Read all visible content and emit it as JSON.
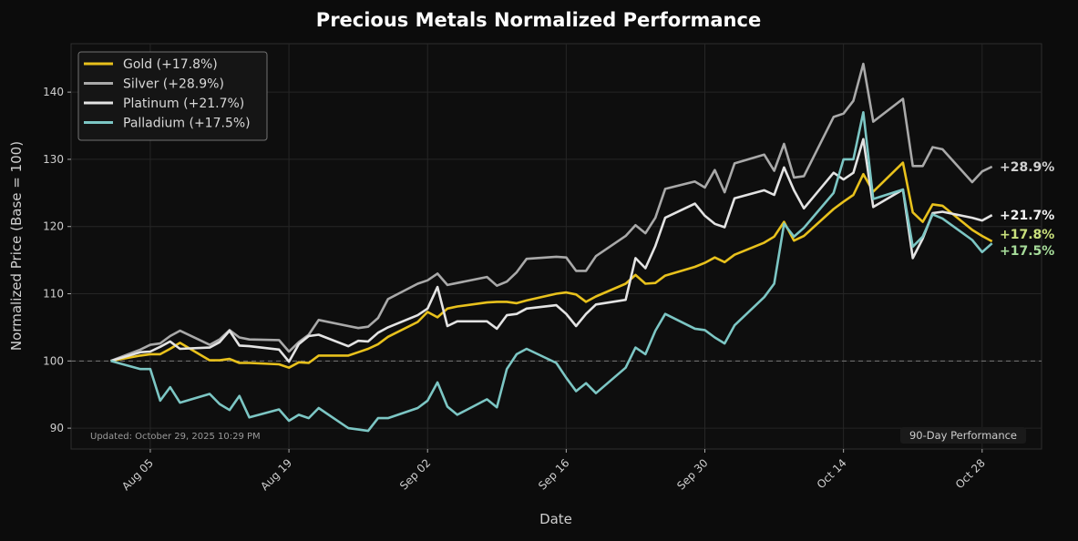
{
  "chart_data": {
    "type": "line",
    "title": "Precious Metals Normalized Performance",
    "xlabel": "Date",
    "ylabel": "Normalized Price (Base = 100)",
    "ylim": [
      86.9,
      147.2
    ],
    "xlim": [
      "2025-07-28",
      "2025-11-03"
    ],
    "yticks": [
      90,
      100,
      110,
      120,
      130,
      140
    ],
    "xticks": [
      {
        "date": "2025-08-05",
        "label": "Aug 05"
      },
      {
        "date": "2025-08-19",
        "label": "Aug 19"
      },
      {
        "date": "2025-09-02",
        "label": "Sep 02"
      },
      {
        "date": "2025-09-16",
        "label": "Sep 16"
      },
      {
        "date": "2025-09-30",
        "label": "Sep 30"
      },
      {
        "date": "2025-10-14",
        "label": "Oct 14"
      },
      {
        "date": "2025-10-28",
        "label": "Oct 28"
      }
    ],
    "grid": true,
    "baseline": 100,
    "legend_position": "top-left",
    "x": [
      "2025-08-01",
      "2025-08-04",
      "2025-08-05",
      "2025-08-06",
      "2025-08-07",
      "2025-08-08",
      "2025-08-11",
      "2025-08-12",
      "2025-08-13",
      "2025-08-14",
      "2025-08-15",
      "2025-08-18",
      "2025-08-19",
      "2025-08-20",
      "2025-08-21",
      "2025-08-22",
      "2025-08-25",
      "2025-08-26",
      "2025-08-27",
      "2025-08-28",
      "2025-08-29",
      "2025-09-01",
      "2025-09-02",
      "2025-09-03",
      "2025-09-04",
      "2025-09-05",
      "2025-09-08",
      "2025-09-09",
      "2025-09-10",
      "2025-09-11",
      "2025-09-12",
      "2025-09-15",
      "2025-09-16",
      "2025-09-17",
      "2025-09-18",
      "2025-09-19",
      "2025-09-22",
      "2025-09-23",
      "2025-09-24",
      "2025-09-25",
      "2025-09-26",
      "2025-09-29",
      "2025-09-30",
      "2025-10-01",
      "2025-10-02",
      "2025-10-03",
      "2025-10-06",
      "2025-10-07",
      "2025-10-08",
      "2025-10-09",
      "2025-10-10",
      "2025-10-13",
      "2025-10-14",
      "2025-10-15",
      "2025-10-16",
      "2025-10-17",
      "2025-10-20",
      "2025-10-21",
      "2025-10-22",
      "2025-10-23",
      "2025-10-24",
      "2025-10-27",
      "2025-10-28",
      "2025-10-29"
    ],
    "series": [
      {
        "name": "Gold (+17.8%)",
        "end_label": "+17.8%",
        "color": "#e8c11c",
        "label_color": "#c9e07c",
        "values": [
          100,
          100.8,
          101,
          101,
          101.8,
          102.7,
          100.1,
          100.1,
          100.3,
          99.7,
          99.7,
          99.5,
          99.0,
          99.8,
          99.7,
          100.8,
          100.8,
          101.3,
          101.8,
          102.5,
          103.6,
          105.8,
          107.3,
          106.5,
          107.8,
          108.1,
          108.7,
          108.8,
          108.8,
          108.6,
          109,
          110,
          110.2,
          109.9,
          108.8,
          109.6,
          111.5,
          112.8,
          111.5,
          111.6,
          112.7,
          114,
          114.6,
          115.4,
          114.7,
          115.8,
          117.6,
          118.5,
          120.7,
          117.9,
          118.6,
          122.6,
          123.7,
          124.7,
          127.8,
          125.2,
          129.5,
          122.1,
          120.7,
          123.3,
          123.1,
          119.5,
          118.6,
          117.8
        ]
      },
      {
        "name": "Silver (+28.9%)",
        "end_label": "+28.9%",
        "color": "#a9a9a9",
        "label_color": "#d0d0d0",
        "values": [
          100,
          101.7,
          102.4,
          102.6,
          103.7,
          104.5,
          102.4,
          103.2,
          104.6,
          103.5,
          103.2,
          103.1,
          101.4,
          102.8,
          103.9,
          106.1,
          105.2,
          104.9,
          105.1,
          106.4,
          109.2,
          111.5,
          112,
          113,
          111.3,
          111.6,
          112.5,
          111.2,
          111.8,
          113.2,
          115.2,
          115.5,
          115.4,
          113.4,
          113.4,
          115.6,
          118.6,
          120.2,
          119,
          121.3,
          125.6,
          126.7,
          125.8,
          128.4,
          125.1,
          129.4,
          130.7,
          128.3,
          132.3,
          127.3,
          127.5,
          136.3,
          136.8,
          138.7,
          144.2,
          135.6,
          139,
          129,
          129,
          131.8,
          131.5,
          126.6,
          128.2,
          128.9
        ]
      },
      {
        "name": "Platinum (+21.7%)",
        "end_label": "+21.7%",
        "color": "#e3e3e3",
        "label_color": "#f2f2f2",
        "values": [
          100,
          101.3,
          101.4,
          102.1,
          102.9,
          101.8,
          102,
          102.8,
          104.5,
          102.3,
          102.2,
          101.7,
          99.9,
          102.5,
          103.7,
          103.9,
          102.2,
          103,
          102.9,
          104.2,
          105,
          106.8,
          107.8,
          111,
          105.2,
          105.9,
          105.9,
          104.8,
          106.8,
          107,
          107.8,
          108.3,
          107,
          105.2,
          107,
          108.4,
          109.1,
          115.3,
          113.8,
          117.1,
          121.3,
          123.4,
          121.6,
          120.4,
          119.9,
          124.2,
          125.4,
          124.7,
          128.8,
          125.4,
          122.7,
          128,
          127,
          128,
          133,
          122.9,
          125.5,
          115.3,
          118.2,
          122,
          122.2,
          121.3,
          120.9,
          121.7
        ]
      },
      {
        "name": "Palladium (+17.5%)",
        "end_label": "+17.5%",
        "color": "#7cc6c4",
        "label_color": "#a6dc9a",
        "values": [
          100,
          98.8,
          98.8,
          94.1,
          96.1,
          93.8,
          95.1,
          93.6,
          92.7,
          94.8,
          91.6,
          92.8,
          91.1,
          92,
          91.5,
          93,
          90,
          89.8,
          89.6,
          91.5,
          91.5,
          93,
          94.1,
          96.8,
          93.2,
          92,
          94.3,
          93.1,
          98.8,
          101,
          101.8,
          99.7,
          97.5,
          95.5,
          96.7,
          95.2,
          99,
          102,
          101,
          104.5,
          107,
          104.8,
          104.6,
          103.5,
          102.6,
          105.3,
          109.5,
          111.5,
          120.4,
          118.5,
          119.8,
          125,
          130,
          130,
          137,
          124.1,
          125.5,
          117,
          118.5,
          121.8,
          121.2,
          118,
          116.2,
          117.5
        ]
      }
    ],
    "footer_left": "Updated: October 29, 2025 10:29 PM",
    "footer_right": "90-Day Performance"
  }
}
